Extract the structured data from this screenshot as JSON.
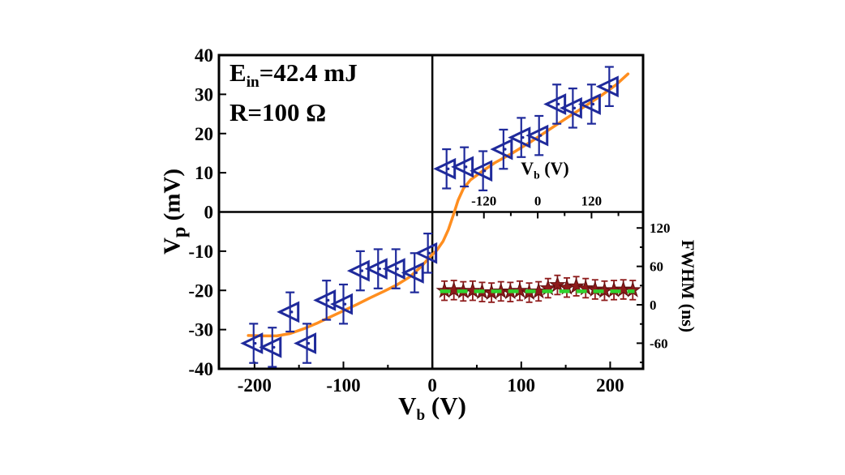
{
  "figure": {
    "background": "#ffffff",
    "annotations": [
      {
        "prefix": "E",
        "sub": "in",
        "rest": "=42.4 mJ"
      },
      {
        "prefix": "R",
        "sub": "",
        "rest": "=100 Ω"
      }
    ],
    "main_axis": {
      "xlabel": {
        "prefix": "V",
        "sub": "b",
        "rest": " (V)"
      },
      "ylabel": {
        "prefix": "V",
        "sub": "p",
        "rest": " (mV)"
      }
    },
    "inset_axis": {
      "xlabel": {
        "prefix": "V",
        "sub": "b",
        "rest": " (V)"
      },
      "ylabel": "FWHM (ns)"
    }
  },
  "chart_data": {
    "type": "scatter",
    "main": {
      "title": "",
      "xlabel": "V_b (V)",
      "ylabel": "V_p (mV)",
      "xlim": [
        -240,
        237
      ],
      "ylim": [
        -40,
        40
      ],
      "x_ticks": [
        -200,
        -100,
        0,
        100,
        200
      ],
      "x_minor_ticks": [
        -150,
        -50,
        50,
        150
      ],
      "y_ticks": [
        40,
        30,
        20,
        10,
        0,
        -10,
        -20,
        -30,
        -40
      ],
      "zero_lines": true,
      "grid": false,
      "colors": {
        "marker": "#1F2A9B",
        "curve": "#FF8E1F"
      },
      "series": [
        {
          "name": "peak-voltage-data",
          "marker": "open-left-triangle-dot",
          "error_bar_mV": 5,
          "points": [
            [
              -201,
              -33.5
            ],
            [
              -180,
              -34.5
            ],
            [
              -160,
              -25.5
            ],
            [
              -141,
              -33.5
            ],
            [
              -119,
              -22.5
            ],
            [
              -100,
              -23.5
            ],
            [
              -81,
              -15
            ],
            [
              -61,
              -14.5
            ],
            [
              -41,
              -14.5
            ],
            [
              -20,
              -15.5
            ],
            [
              -5,
              -10.5
            ],
            [
              16,
              11
            ],
            [
              36,
              11.5
            ],
            [
              57,
              10.5
            ],
            [
              80,
              16
            ],
            [
              100,
              19
            ],
            [
              120,
              19.5
            ],
            [
              140,
              27.5
            ],
            [
              158,
              26.5
            ],
            [
              179,
              27.5
            ],
            [
              199,
              32
            ]
          ]
        },
        {
          "name": "fit-curve",
          "type": "line",
          "points": [
            [
              -207,
              -31.5
            ],
            [
              -190,
              -31.6
            ],
            [
              -175,
              -31.6
            ],
            [
              -160,
              -31
            ],
            [
              -145,
              -29.8
            ],
            [
              -130,
              -28.4
            ],
            [
              -115,
              -26.8
            ],
            [
              -100,
              -25.2
            ],
            [
              -85,
              -23.6
            ],
            [
              -70,
              -21.9
            ],
            [
              -55,
              -20.3
            ],
            [
              -40,
              -18.6
            ],
            [
              -25,
              -16.5
            ],
            [
              -12,
              -13.8
            ],
            [
              -3,
              -11.5
            ],
            [
              5,
              -9.8
            ],
            [
              12,
              -7.5
            ],
            [
              18,
              -4.5
            ],
            [
              24,
              -0.5
            ],
            [
              29,
              3
            ],
            [
              35,
              6
            ],
            [
              43,
              8.2
            ],
            [
              55,
              10.2
            ],
            [
              70,
              12.5
            ],
            [
              90,
              15
            ],
            [
              110,
              17.8
            ],
            [
              130,
              20.8
            ],
            [
              150,
              23.8
            ],
            [
              170,
              26.7
            ],
            [
              190,
              29.7
            ],
            [
              207,
              32.5
            ],
            [
              220,
              35.2
            ]
          ]
        }
      ]
    },
    "inset": {
      "xlabel": "V_b (V)",
      "ylabel": "FWHM (ns)",
      "xlim": [
        -235,
        235
      ],
      "ylim": [
        -100,
        145
      ],
      "x_ticks": [
        -120,
        0,
        120
      ],
      "x_minor_ticks": [
        -180,
        -60,
        60,
        180
      ],
      "y_ticks": [
        120,
        60,
        0,
        -60
      ],
      "y_minor_ticks": [
        90,
        30,
        -30,
        -90
      ],
      "grid": false,
      "colors": {
        "marker": "#8E1A1A",
        "marker_edge": "#5E0E0E",
        "mean_line": "#2FD32F"
      },
      "series": [
        {
          "name": "fwhm-data",
          "marker": "filled-star",
          "error_bar_ns": 15,
          "points": [
            [
              -208,
              22
            ],
            [
              -187,
              23
            ],
            [
              -166,
              21
            ],
            [
              -145,
              22
            ],
            [
              -124,
              20
            ],
            [
              -103,
              19
            ],
            [
              -82,
              21
            ],
            [
              -61,
              20
            ],
            [
              -40,
              22
            ],
            [
              -19,
              19
            ],
            [
              2,
              21
            ],
            [
              23,
              26
            ],
            [
              44,
              31
            ],
            [
              65,
              27
            ],
            [
              86,
              29
            ],
            [
              107,
              26
            ],
            [
              128,
              24
            ],
            [
              149,
              22
            ],
            [
              170,
              23
            ],
            [
              191,
              24
            ],
            [
              212,
              23
            ]
          ]
        },
        {
          "name": "mean-dashed-line",
          "type": "dashed-line",
          "y": 21,
          "x_range": [
            -218,
            216
          ]
        }
      ]
    }
  }
}
